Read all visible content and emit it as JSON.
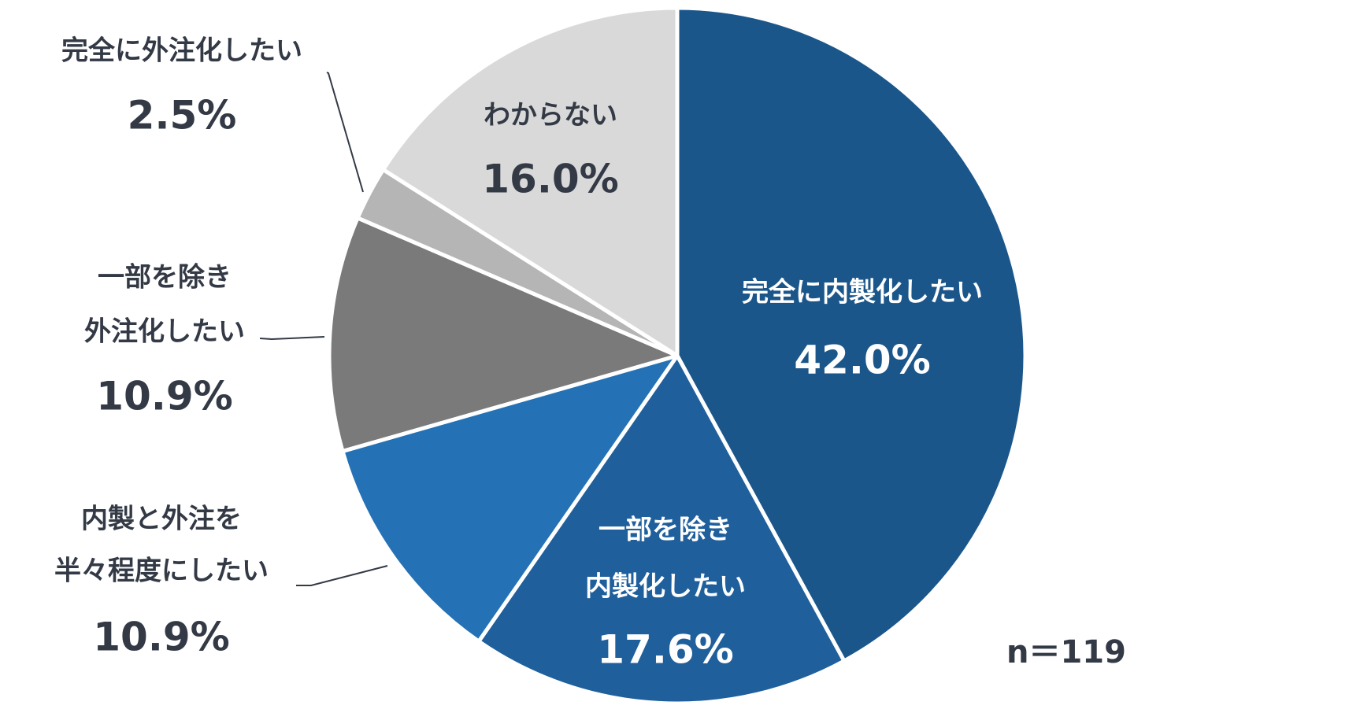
{
  "chart_data": {
    "type": "pie",
    "categories": [
      [
        "完全に内製化したい"
      ],
      [
        "一部を除き",
        "内製化したい"
      ],
      [
        "内製と外注を",
        "半々程度にしたい"
      ],
      [
        "一部を除き",
        "外注化したい"
      ],
      [
        "完全に外注化したい"
      ],
      [
        "わからない"
      ]
    ],
    "values": [
      42.0,
      17.6,
      10.9,
      10.9,
      2.5,
      16.0
    ],
    "value_labels": [
      "42.0%",
      "17.6%",
      "10.9%",
      "10.9%",
      "2.5%",
      "16.0%"
    ],
    "colors": [
      "#1b568b",
      "#1f5f9c",
      "#2472b5",
      "#7a7a7a",
      "#b5b5b5",
      "#d9d9d9"
    ],
    "note": "n＝119"
  }
}
